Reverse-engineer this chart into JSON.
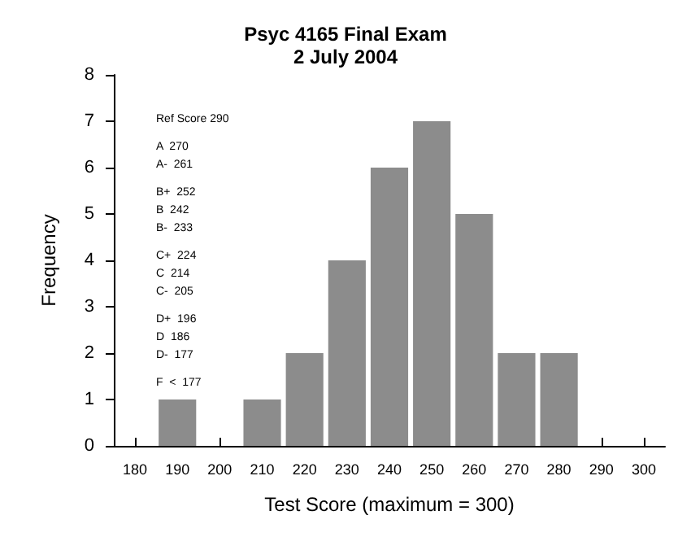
{
  "chart_data": {
    "type": "histogram",
    "title": "Psyc 4165 Final Exam",
    "subtitle": "2 July 2004",
    "xlabel": "Test Score (maximum = 300)",
    "ylabel": "Frequency",
    "bins": [
      185,
      195,
      205,
      215,
      225,
      235,
      245,
      255,
      265,
      275,
      285
    ],
    "values": [
      1,
      0,
      1,
      2,
      4,
      6,
      7,
      5,
      2,
      2
    ],
    "color": "#8c8c8c",
    "xlim": [
      175,
      305
    ],
    "xticks": [
      180,
      190,
      200,
      210,
      220,
      230,
      240,
      250,
      260,
      270,
      280,
      290,
      300
    ],
    "ylim": [
      0,
      8
    ],
    "yticks": [
      0,
      1,
      2,
      3,
      4,
      5,
      6,
      7,
      8
    ],
    "grid": false,
    "annotations": [
      "Ref Score 290",
      "A  270",
      "A-  261",
      "B+  252",
      "B  242",
      "B-  233",
      "C+  224",
      "C  214",
      "C-  205",
      "D+  196",
      "D  186",
      "D-  177",
      "F  <  177"
    ]
  }
}
